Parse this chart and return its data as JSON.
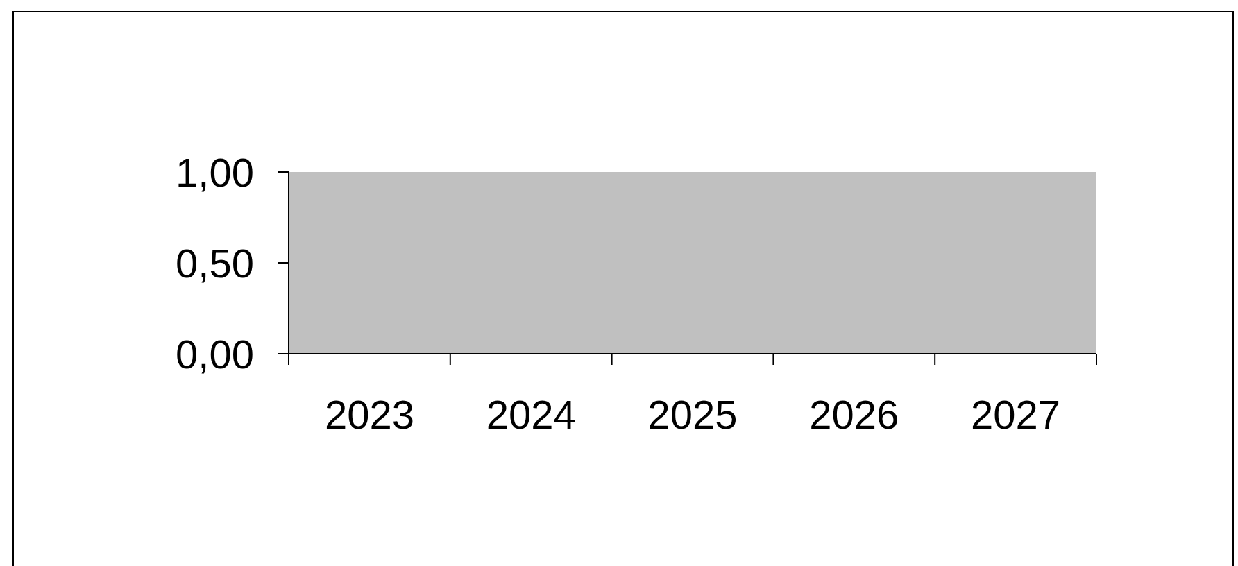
{
  "chart_data": {
    "type": "bar",
    "categories": [
      "2023",
      "2024",
      "2025",
      "2026",
      "2027"
    ],
    "series": [
      {
        "values": [
          null,
          null,
          null,
          null,
          null
        ]
      }
    ],
    "ylim": [
      0,
      1
    ],
    "yticks": [
      {
        "value": 0,
        "label": "0,00"
      },
      {
        "value": 0.5,
        "label": "0,50"
      },
      {
        "value": 1,
        "label": "1,00"
      }
    ],
    "grid": false,
    "legend": false
  }
}
